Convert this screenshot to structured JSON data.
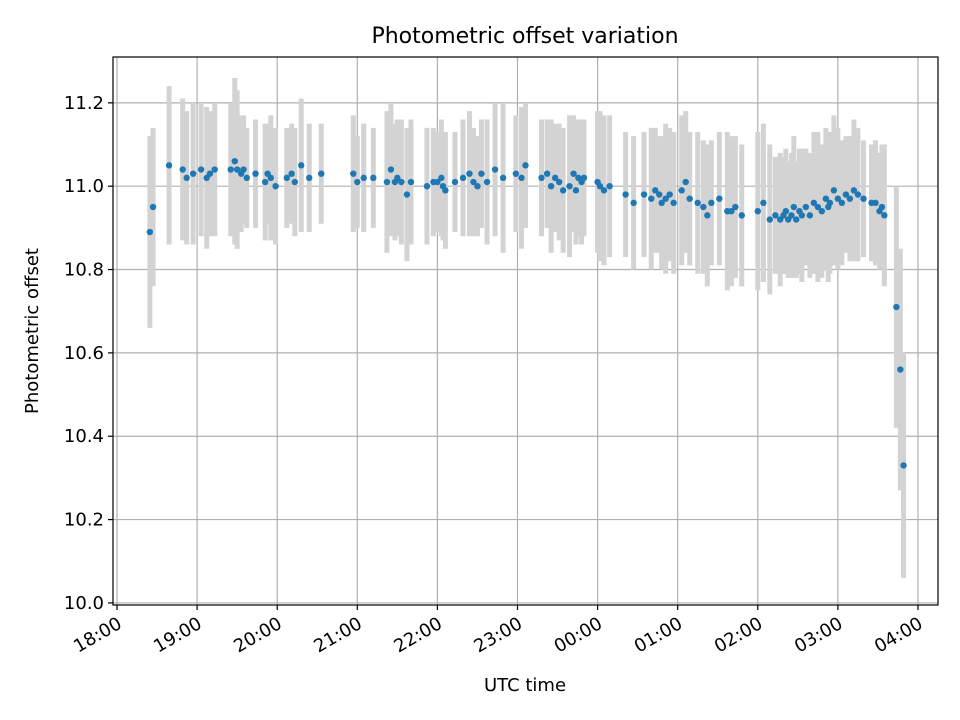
{
  "chart_data": {
    "type": "scatter",
    "title": "Photometric offset variation",
    "xlabel": "UTC time",
    "ylabel": "Photometric offset",
    "xlim": [
      -0.05,
      10.25
    ],
    "ylim": [
      9.995,
      11.31
    ],
    "grid": true,
    "x_ticks": [
      {
        "value": 0,
        "label": "18:00"
      },
      {
        "value": 1,
        "label": "19:00"
      },
      {
        "value": 2,
        "label": "20:00"
      },
      {
        "value": 3,
        "label": "21:00"
      },
      {
        "value": 4,
        "label": "22:00"
      },
      {
        "value": 5,
        "label": "23:00"
      },
      {
        "value": 6,
        "label": "00:00"
      },
      {
        "value": 7,
        "label": "01:00"
      },
      {
        "value": 8,
        "label": "02:00"
      },
      {
        "value": 9,
        "label": "03:00"
      },
      {
        "value": 10,
        "label": "04:00"
      }
    ],
    "y_ticks": [
      {
        "value": 10.0,
        "label": "10.0"
      },
      {
        "value": 10.2,
        "label": "10.2"
      },
      {
        "value": 10.4,
        "label": "10.4"
      },
      {
        "value": 10.6,
        "label": "10.6"
      },
      {
        "value": 10.8,
        "label": "10.8"
      },
      {
        "value": 11.0,
        "label": "11.0"
      },
      {
        "value": 11.2,
        "label": "11.2"
      }
    ],
    "marker_color": "#1f77b4",
    "errorbar_color": "#d3d3d3",
    "series": [
      {
        "name": "Photometric offset",
        "x": [
          0.41,
          0.45,
          0.65,
          0.82,
          0.87,
          0.95,
          1.05,
          1.12,
          1.16,
          1.22,
          1.42,
          1.47,
          1.5,
          1.55,
          1.58,
          1.62,
          1.73,
          1.85,
          1.88,
          1.92,
          1.98,
          2.12,
          2.18,
          2.22,
          2.3,
          2.4,
          2.55,
          2.95,
          3.0,
          3.08,
          3.2,
          3.37,
          3.42,
          3.47,
          3.5,
          3.55,
          3.62,
          3.67,
          3.87,
          3.95,
          4.0,
          4.05,
          4.07,
          4.1,
          4.22,
          4.32,
          4.4,
          4.45,
          4.5,
          4.55,
          4.62,
          4.72,
          4.82,
          4.98,
          5.05,
          5.1,
          5.3,
          5.37,
          5.42,
          5.47,
          5.52,
          5.57,
          5.65,
          5.7,
          5.73,
          5.76,
          5.8,
          5.83,
          6.0,
          6.03,
          6.08,
          6.15,
          6.35,
          6.45,
          6.58,
          6.67,
          6.72,
          6.77,
          6.8,
          6.85,
          6.9,
          6.95,
          7.05,
          7.1,
          7.15,
          7.25,
          7.32,
          7.37,
          7.42,
          7.52,
          7.62,
          7.67,
          7.72,
          7.8,
          8.0,
          8.07,
          8.15,
          8.22,
          8.28,
          8.32,
          8.35,
          8.38,
          8.42,
          8.45,
          8.48,
          8.52,
          8.55,
          8.6,
          8.65,
          8.7,
          8.75,
          8.8,
          8.85,
          8.88,
          8.9,
          8.95,
          9.0,
          9.05,
          9.1,
          9.15,
          9.2,
          9.25,
          9.32,
          9.42,
          9.47,
          9.52,
          9.55,
          9.58,
          9.73,
          9.78,
          9.82
        ],
        "y": [
          10.89,
          10.95,
          11.05,
          11.04,
          11.02,
          11.03,
          11.04,
          11.02,
          11.03,
          11.04,
          11.04,
          11.06,
          11.04,
          11.03,
          11.04,
          11.02,
          11.03,
          11.01,
          11.03,
          11.02,
          11.0,
          11.02,
          11.03,
          11.01,
          11.05,
          11.02,
          11.03,
          11.03,
          11.01,
          11.02,
          11.02,
          11.01,
          11.04,
          11.01,
          11.02,
          11.01,
          10.98,
          11.01,
          11.0,
          11.01,
          11.01,
          11.02,
          11.0,
          10.99,
          11.01,
          11.02,
          11.03,
          11.01,
          11.0,
          11.03,
          11.01,
          11.04,
          11.02,
          11.03,
          11.02,
          11.05,
          11.02,
          11.03,
          11.0,
          11.02,
          11.01,
          10.99,
          11.0,
          11.03,
          10.99,
          11.02,
          11.01,
          11.02,
          11.01,
          11.0,
          10.99,
          11.0,
          10.98,
          10.96,
          10.98,
          10.97,
          10.99,
          10.98,
          10.96,
          10.97,
          10.98,
          10.96,
          10.99,
          11.01,
          10.97,
          10.96,
          10.95,
          10.93,
          10.96,
          10.97,
          10.94,
          10.94,
          10.95,
          10.93,
          10.94,
          10.96,
          10.92,
          10.93,
          10.92,
          10.93,
          10.94,
          10.92,
          10.93,
          10.95,
          10.92,
          10.94,
          10.93,
          10.95,
          10.93,
          10.96,
          10.95,
          10.94,
          10.97,
          10.95,
          10.96,
          10.99,
          10.97,
          10.96,
          10.98,
          10.97,
          10.99,
          10.98,
          10.97,
          10.96,
          10.96,
          10.94,
          10.95,
          10.93,
          10.71,
          10.56,
          10.33
        ],
        "err": [
          0.23,
          0.19,
          0.19,
          0.17,
          0.16,
          0.17,
          0.16,
          0.17,
          0.15,
          0.16,
          0.16,
          0.2,
          0.19,
          0.14,
          0.13,
          0.12,
          0.13,
          0.14,
          0.12,
          0.15,
          0.14,
          0.12,
          0.12,
          0.13,
          0.16,
          0.13,
          0.12,
          0.14,
          0.11,
          0.13,
          0.12,
          0.17,
          0.16,
          0.14,
          0.14,
          0.15,
          0.16,
          0.15,
          0.14,
          0.13,
          0.12,
          0.14,
          0.13,
          0.14,
          0.12,
          0.14,
          0.15,
          0.13,
          0.12,
          0.13,
          0.15,
          0.16,
          0.18,
          0.14,
          0.17,
          0.15,
          0.14,
          0.13,
          0.16,
          0.13,
          0.14,
          0.15,
          0.17,
          0.14,
          0.13,
          0.14,
          0.15,
          0.14,
          0.17,
          0.18,
          0.18,
          0.17,
          0.15,
          0.16,
          0.15,
          0.17,
          0.15,
          0.14,
          0.16,
          0.18,
          0.16,
          0.17,
          0.18,
          0.17,
          0.16,
          0.17,
          0.16,
          0.17,
          0.15,
          0.16,
          0.19,
          0.18,
          0.17,
          0.17,
          0.19,
          0.19,
          0.18,
          0.14,
          0.16,
          0.14,
          0.15,
          0.14,
          0.15,
          0.17,
          0.14,
          0.15,
          0.16,
          0.14,
          0.15,
          0.17,
          0.18,
          0.16,
          0.17,
          0.18,
          0.17,
          0.18,
          0.17,
          0.15,
          0.14,
          0.15,
          0.17,
          0.16,
          0.14,
          0.14,
          0.15,
          0.14,
          0.15,
          0.17,
          0.29,
          0.29,
          0.27
        ]
      }
    ]
  }
}
